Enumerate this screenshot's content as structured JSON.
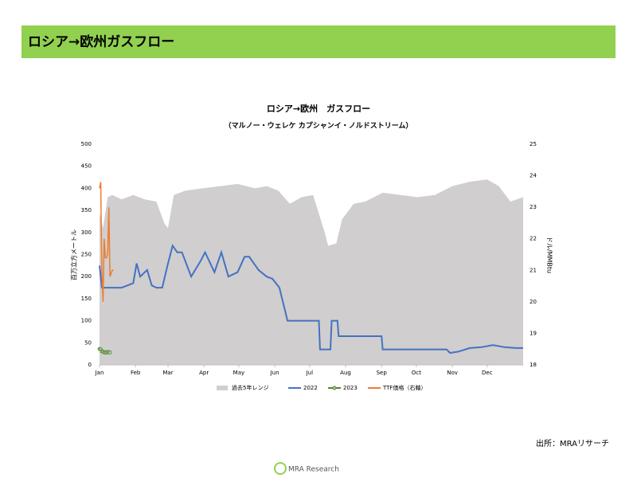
{
  "header": {
    "title": "ロシア→欧州ガスフロー"
  },
  "chart_data": {
    "type": "line",
    "title": "ロシア→欧州　ガスフロー",
    "subtitle": "（マルノー・ウェレケ カプシャンイ・ノルドストリーム）",
    "ylabel": "百万立方メートル",
    "y2label": "ドル/MMBtu",
    "xlim": [
      1,
      366
    ],
    "xticks": [
      {
        "value": 1,
        "label": "Jan"
      },
      {
        "value": 32,
        "label": "Feb"
      },
      {
        "value": 60,
        "label": "Mar"
      },
      {
        "value": 91,
        "label": "Apr"
      },
      {
        "value": 121,
        "label": "May"
      },
      {
        "value": 152,
        "label": "Jun"
      },
      {
        "value": 182,
        "label": "Jul"
      },
      {
        "value": 213,
        "label": "Aug"
      },
      {
        "value": 244,
        "label": "Sep"
      },
      {
        "value": 274,
        "label": "Oct"
      },
      {
        "value": 305,
        "label": "Nov"
      },
      {
        "value": 335,
        "label": "Dec"
      }
    ],
    "ylim": [
      0,
      500
    ],
    "yticks": [
      0,
      50,
      100,
      150,
      200,
      250,
      300,
      350,
      400,
      450,
      500
    ],
    "y2lim": [
      18,
      25
    ],
    "y2ticks": [
      18,
      19,
      20,
      21,
      22,
      23,
      24,
      25
    ],
    "series": [
      {
        "name": "過去5年レンジ",
        "style": "area",
        "color": "#d0cece",
        "x": [
          1,
          4,
          8,
          12,
          20,
          30,
          40,
          50,
          57,
          60,
          65,
          75,
          90,
          105,
          120,
          135,
          145,
          155,
          165,
          175,
          185,
          195,
          198,
          205,
          210,
          220,
          230,
          245,
          260,
          275,
          290,
          305,
          320,
          335,
          345,
          355,
          366
        ],
        "values": [
          345,
          310,
          380,
          385,
          375,
          385,
          375,
          370,
          320,
          310,
          385,
          395,
          400,
          405,
          410,
          400,
          405,
          395,
          365,
          380,
          385,
          300,
          270,
          275,
          330,
          365,
          370,
          390,
          385,
          380,
          385,
          405,
          415,
          420,
          405,
          370,
          380
        ]
      },
      {
        "name": "2022",
        "style": "line",
        "color": "#4472c4",
        "x": [
          1,
          3,
          5,
          20,
          30,
          33,
          36,
          42,
          46,
          50,
          55,
          60,
          64,
          68,
          72,
          80,
          88,
          92,
          100,
          106,
          112,
          120,
          126,
          130,
          138,
          145,
          150,
          156,
          163,
          168,
          190,
          191,
          200,
          201,
          206,
          207,
          244,
          245,
          300,
          303,
          310,
          320,
          330,
          340,
          350,
          360,
          366
        ],
        "values": [
          225,
          175,
          175,
          175,
          185,
          230,
          200,
          215,
          180,
          175,
          175,
          230,
          270,
          255,
          255,
          200,
          235,
          255,
          210,
          255,
          200,
          210,
          245,
          245,
          215,
          200,
          195,
          175,
          100,
          100,
          100,
          35,
          35,
          100,
          100,
          65,
          65,
          35,
          35,
          27,
          30,
          38,
          40,
          45,
          40,
          38,
          38
        ]
      },
      {
        "name": "2023",
        "style": "marker-line",
        "color": "#548235",
        "x": [
          1,
          2,
          3,
          4,
          5,
          6,
          7,
          8,
          9,
          10
        ],
        "values": [
          36,
          35,
          31,
          30,
          28,
          28,
          29,
          28,
          29,
          28
        ]
      },
      {
        "name": "TTF価格（右軸）",
        "style": "line",
        "color": "#ed7d31",
        "axis": "y2",
        "x": [
          1,
          2,
          3,
          4,
          5,
          6,
          7,
          8,
          9,
          10,
          11,
          12,
          13
        ],
        "values": [
          23.6,
          23.8,
          21.0,
          20.0,
          22.0,
          21.4,
          21.4,
          21.5,
          23.0,
          20.8,
          20.9,
          21.0,
          21.0
        ]
      }
    ]
  },
  "footer": {
    "source": "出所：MRAリサーチ",
    "logo": "MRA Research"
  }
}
